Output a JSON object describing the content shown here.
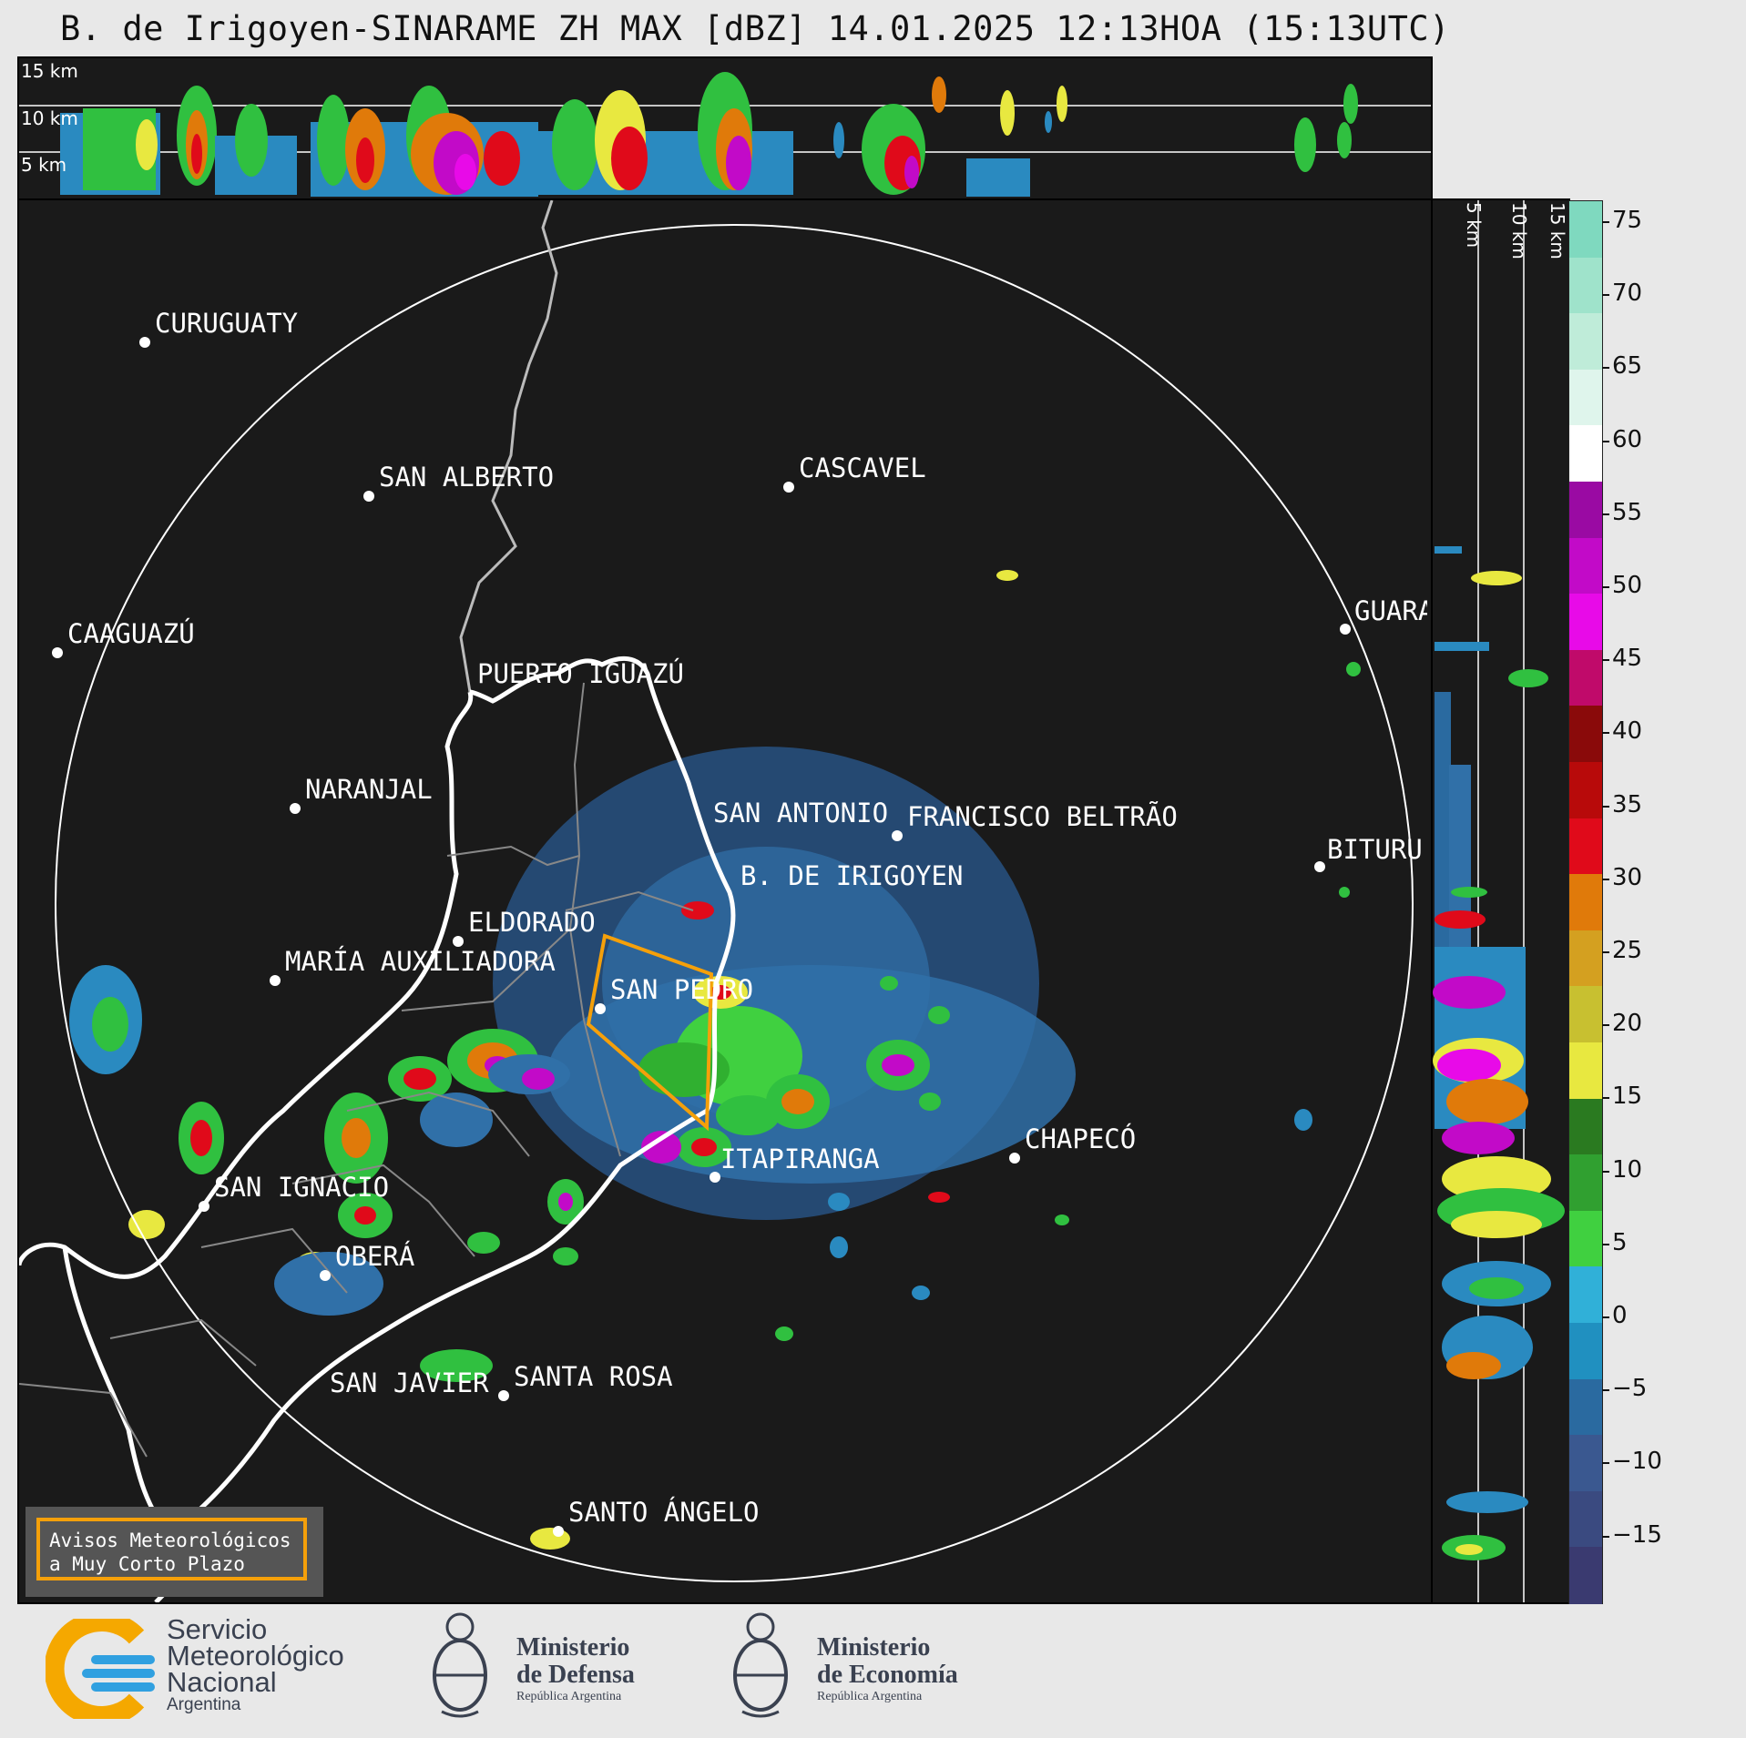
{
  "title": "B. de Irigoyen-SINARAME ZH MAX [dBZ] 14.01.2025 12:13HOA (15:13UTC)",
  "top_panel": {
    "height_labels": [
      "15 km",
      "10 km",
      "5 km"
    ]
  },
  "side_panel": {
    "height_labels": [
      "5 km",
      "10 km",
      "15 km"
    ]
  },
  "colorbar": {
    "unit": "dBZ",
    "ticks": [
      "75",
      "70",
      "65",
      "60",
      "55",
      "50",
      "45",
      "40",
      "35",
      "30",
      "25",
      "20",
      "15",
      "10",
      "5",
      "0",
      "−5",
      "−10",
      "−15"
    ],
    "colors_top_to_bottom": [
      "#7fd9bf",
      "#9fe3cb",
      "#bfecd9",
      "#dff5ec",
      "#ffffff",
      "#9a0aa3",
      "#c20ac8",
      "#e80ae8",
      "#c00a6a",
      "#8a0a0a",
      "#b80a0a",
      "#e00a1a",
      "#e07a0a",
      "#d4a020",
      "#c8c030",
      "#e8e840",
      "#2a7a20",
      "#30a030",
      "#40d040",
      "#30b0d8",
      "#2090c0",
      "#2a6aa0",
      "#3a5890",
      "#3a4a80",
      "#3a3a70"
    ]
  },
  "cities": [
    {
      "name": "CURUGUATY"
    },
    {
      "name": "SAN ALBERTO"
    },
    {
      "name": "CASCAVEL"
    },
    {
      "name": "CAAGUAZÚ"
    },
    {
      "name": "PUERTO IGUAZÚ"
    },
    {
      "name": "GUARA"
    },
    {
      "name": "NARANJAL"
    },
    {
      "name": "SAN ANTONIO"
    },
    {
      "name": "FRANCISCO BELTRÃO"
    },
    {
      "name": "B. DE IRIGOYEN"
    },
    {
      "name": "BITURU"
    },
    {
      "name": "ELDORADO"
    },
    {
      "name": "MARÍA AUXILIADORA"
    },
    {
      "name": "SAN PEDRO"
    },
    {
      "name": "CHAPECÓ"
    },
    {
      "name": "ITAPIRANGA"
    },
    {
      "name": "SAN IGNACIO"
    },
    {
      "name": "OBERÁ"
    },
    {
      "name": "SAN JAVIER"
    },
    {
      "name": "SANTA ROSA"
    },
    {
      "name": "SANTO ÁNGELO"
    }
  ],
  "warning_box": {
    "line1": "Avisos Meteorológicos",
    "line2": "a Muy Corto Plazo"
  },
  "logos": {
    "smn": {
      "line1": "Servicio",
      "line2": "Meteorológico",
      "line3": "Nacional",
      "line4": "Argentina"
    },
    "defensa": {
      "line1": "Ministerio",
      "line2": "de Defensa",
      "line3": "República Argentina"
    },
    "economia": {
      "line1": "Ministerio",
      "line2": "de Economía",
      "line3": "República Argentina"
    }
  }
}
